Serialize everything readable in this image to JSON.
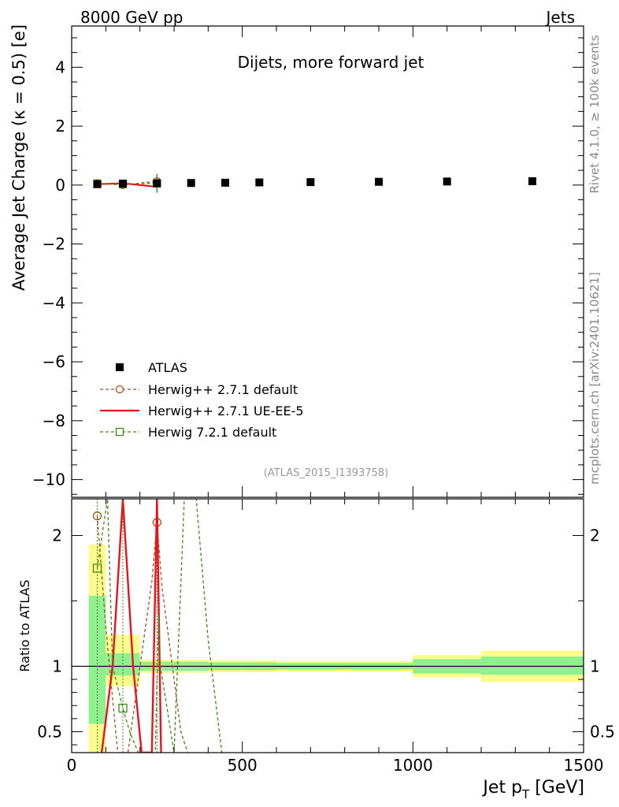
{
  "header": {
    "left": "8000 GeV pp",
    "right": "Jets",
    "side_top": "Rivet 4.1.0, ≥ 100k events",
    "side_bottom": "mcplots.cern.ch [arXiv:2401.10621]"
  },
  "chart_data": [
    {
      "panel": "main",
      "type": "scatter",
      "title": "Dijets, more forward jet",
      "xlabel": "Jet p_T [GeV]",
      "ylabel": "Average Jet Charge (κ = 0.5) [e]",
      "watermark": "(ATLAS_2015_I1393758)",
      "xlim": [
        0,
        1500
      ],
      "ylim": [
        -10.6,
        5.4
      ],
      "yticks": [
        4,
        2,
        0,
        -2,
        -4,
        -6,
        -8,
        -10
      ],
      "ytick_labels": [
        "4",
        "2",
        "0",
        "−2",
        "−4",
        "−6",
        "−8",
        "−10"
      ],
      "x_bins": [
        50,
        100,
        200,
        300,
        400,
        500,
        600,
        800,
        1000,
        1200,
        1500
      ],
      "x": [
        75,
        150,
        250,
        350,
        450,
        550,
        700,
        900,
        1100,
        1350
      ],
      "series": [
        {
          "name": "ATLAS",
          "style": "data",
          "color": "#000000",
          "values": [
            0.03,
            0.05,
            0.06,
            0.07,
            0.08,
            0.09,
            0.1,
            0.11,
            0.12,
            0.13
          ]
        },
        {
          "name": "Herwig++ 2.7.1 default",
          "style": "circle-dashed",
          "color": "#a0521e",
          "x": [
            75,
            150,
            250
          ],
          "values": [
            0.065,
            0.0,
            0.13
          ],
          "err": [
            0.04,
            0.05,
            0.25
          ]
        },
        {
          "name": "Herwig++ 2.7.1 UE-EE-5",
          "style": "solid",
          "color": "#e8141c",
          "x": [
            75,
            150,
            250
          ],
          "values": [
            0.03,
            0.06,
            -0.06
          ],
          "err": [
            0.04,
            0.06,
            0.2
          ]
        },
        {
          "name": "Herwig 7.2.1 default",
          "style": "square-dashed",
          "color": "#3d8c11",
          "x": [
            75,
            150,
            250
          ],
          "values": [
            0.05,
            0.035,
            0.06
          ],
          "err": [
            0.04,
            0.05,
            0.3
          ]
        }
      ]
    },
    {
      "panel": "ratio",
      "type": "line",
      "ylabel": "Ratio to ATLAS",
      "xlim": [
        0,
        1500
      ],
      "ylim": [
        0.34,
        2.28
      ],
      "yticks": [
        0.5,
        1,
        2
      ],
      "ytick_labels": [
        "0.5",
        "1",
        "2"
      ],
      "xticks": [
        0,
        500,
        1000,
        1500
      ],
      "xtick_labels": [
        "0",
        "500",
        "1000",
        "1500"
      ],
      "bands": {
        "x_bins": [
          50,
          100,
          200,
          300,
          400,
          500,
          600,
          800,
          1000,
          1200,
          1500
        ],
        "yellow_low": [
          0.34,
          0.85,
          0.95,
          0.95,
          0.955,
          0.955,
          0.96,
          0.96,
          0.915,
          0.88
        ],
        "yellow_high": [
          1.93,
          1.24,
          1.05,
          1.05,
          1.045,
          1.045,
          1.04,
          1.04,
          1.085,
          1.12
        ],
        "green_low": [
          0.56,
          0.93,
          0.965,
          0.965,
          0.97,
          0.97,
          0.975,
          0.975,
          0.945,
          0.935
        ],
        "green_high": [
          1.54,
          1.1,
          1.035,
          1.035,
          1.03,
          1.03,
          1.025,
          1.025,
          1.055,
          1.075
        ]
      },
      "series": [
        {
          "name": "Herwig++ 2.7.1 default",
          "style": "circle-dashed",
          "color": "#a0521e",
          "x": [
            75,
            100,
            135,
            150,
            165,
            235,
            250,
            265,
            320,
            340
          ],
          "values": [
            2.15,
            1.3,
            0.34,
            0.34,
            0.34,
            1.65,
            2.1,
            1.6,
            0.5,
            0.34
          ],
          "markers": [
            {
              "x": 75,
              "y": 2.15
            },
            {
              "x": 250,
              "y": 2.1
            }
          ]
        },
        {
          "name": "Herwig++ 2.7.1 UE-EE-5",
          "style": "solid",
          "color": "#e8141c",
          "x": [
            88,
            120,
            150,
            180,
            205,
            235,
            250,
            262
          ],
          "values": [
            0.34,
            1.0,
            2.28,
            1.0,
            0.34,
            0.34,
            2.28,
            0.34
          ]
        },
        {
          "name": "Herwig 7.2.1 default",
          "style": "square-dashed",
          "color": "#3d8c11",
          "x": [
            75,
            105,
            120,
            150,
            170,
            195,
            245,
            255,
            260,
            300,
            330,
            365,
            400,
            440
          ],
          "values": [
            1.75,
            2.28,
            1.0,
            0.68,
            0.5,
            0.34,
            0.34,
            1.4,
            1.0,
            0.34,
            2.28,
            2.28,
            1.2,
            0.34
          ],
          "markers": [
            {
              "x": 75,
              "y": 1.75
            },
            {
              "x": 150,
              "y": 0.68
            }
          ]
        }
      ]
    }
  ]
}
